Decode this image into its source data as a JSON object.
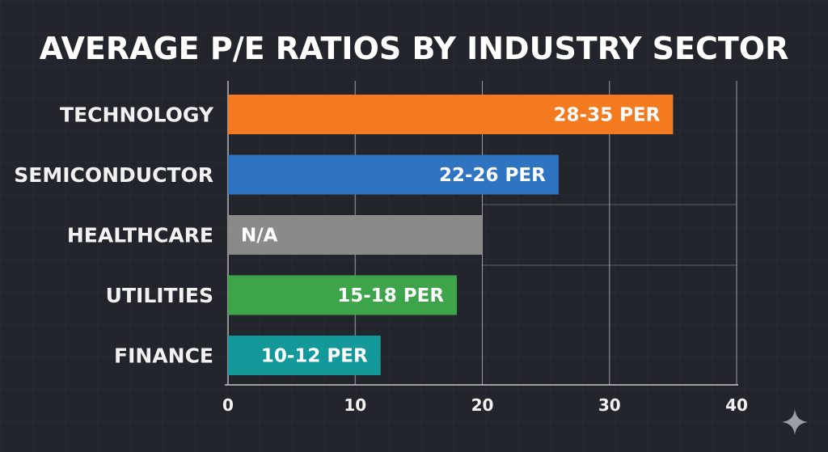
{
  "chart_data": {
    "type": "bar",
    "orientation": "horizontal",
    "title": "AVERAGE P/E RATIOS BY INDUSTRY SECTOR",
    "categories": [
      "TECHNOLOGY",
      "SEMICONDUCTOR",
      "HEALTHCARE",
      "UTILITIES",
      "FINANCE"
    ],
    "values": [
      35,
      26,
      20,
      18,
      12
    ],
    "data_labels": [
      "28-35 PER",
      "22-26 PER",
      "N/A",
      "15-18 PER",
      "10-12 PER"
    ],
    "label_align": [
      "right",
      "right",
      "left",
      "right",
      "right"
    ],
    "colors": [
      "#f47a20",
      "#2f74c0",
      "#8a8a8a",
      "#3da44a",
      "#14999a"
    ],
    "xlim": [
      0,
      40
    ],
    "xticks": [
      0,
      10,
      20,
      30,
      40
    ],
    "grid": true,
    "xlabel": "",
    "ylabel": ""
  },
  "colors": {
    "background": "#22262c",
    "gridline": "#c8c8c8",
    "text": "#f2f2f2"
  },
  "decor": {
    "corner_icon": "sparkle-icon"
  }
}
